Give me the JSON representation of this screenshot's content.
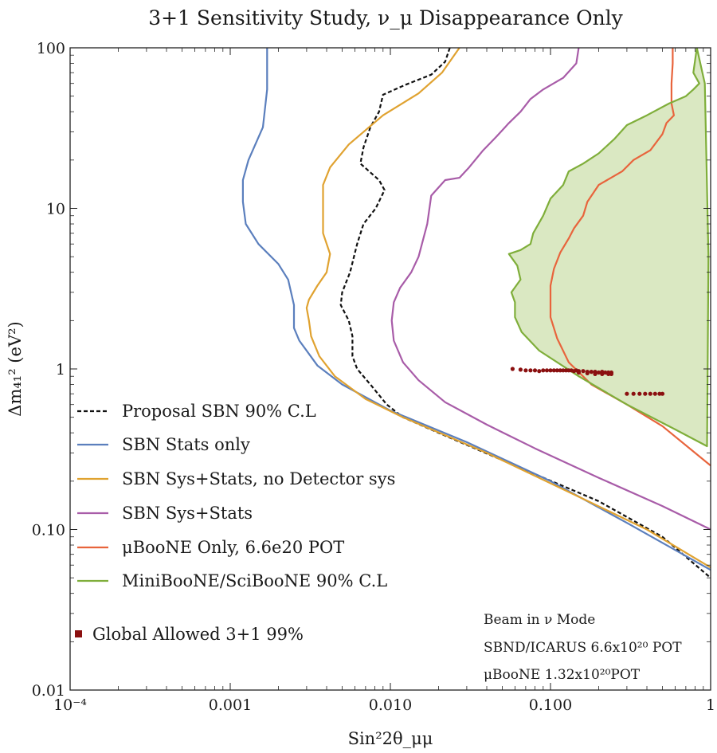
{
  "chart_data": {
    "type": "line",
    "title": "3+1 Sensitivity Study, ν_μ Disappearance Only",
    "xlabel": "Sin²2θ_μμ",
    "ylabel": "Δm₄₁² (eV²)",
    "xscale": "log",
    "yscale": "log",
    "xlim": [
      0.0001,
      1
    ],
    "ylim": [
      0.01,
      100
    ],
    "x_ticks": [
      {
        "v": 0.0001,
        "label": "10⁻⁴"
      },
      {
        "v": 0.001,
        "label": "0.001"
      },
      {
        "v": 0.01,
        "label": "0.010"
      },
      {
        "v": 0.1,
        "label": "0.100"
      },
      {
        "v": 1,
        "label": "1"
      }
    ],
    "y_ticks": [
      {
        "v": 0.01,
        "label": "0.01"
      },
      {
        "v": 0.1,
        "label": "0.10"
      },
      {
        "v": 1,
        "label": "1"
      },
      {
        "v": 10,
        "label": "10"
      },
      {
        "v": 100,
        "label": "100"
      }
    ],
    "grid": false,
    "legend_position": "bottom-left",
    "series": [
      {
        "name": "Proposal SBN 90% C.L",
        "color": "#111111",
        "dash": true,
        "points": [
          [
            0.0235,
            100
          ],
          [
            0.022,
            82
          ],
          [
            0.018,
            68
          ],
          [
            0.0125,
            59
          ],
          [
            0.009,
            51
          ],
          [
            0.0085,
            40
          ],
          [
            0.0075,
            32
          ],
          [
            0.0068,
            24
          ],
          [
            0.0065,
            19
          ],
          [
            0.0085,
            15
          ],
          [
            0.0092,
            13
          ],
          [
            0.0081,
            10
          ],
          [
            0.0068,
            8
          ],
          [
            0.0062,
            6
          ],
          [
            0.0056,
            4
          ],
          [
            0.005,
            3
          ],
          [
            0.0049,
            2.5
          ],
          [
            0.0055,
            2
          ],
          [
            0.0058,
            1.6
          ],
          [
            0.0058,
            1.2
          ],
          [
            0.0062,
            1
          ],
          [
            0.0075,
            0.8
          ],
          [
            0.0095,
            0.6
          ],
          [
            0.012,
            0.5
          ],
          [
            0.02,
            0.4
          ],
          [
            0.06,
            0.25
          ],
          [
            0.2,
            0.15
          ],
          [
            0.5,
            0.09
          ],
          [
            1,
            0.05
          ]
        ]
      },
      {
        "name": "SBN Stats only",
        "color": "#5b7fbd",
        "dash": false,
        "points": [
          [
            0.0017,
            100
          ],
          [
            0.0017,
            55
          ],
          [
            0.0016,
            32
          ],
          [
            0.0013,
            20
          ],
          [
            0.0012,
            15
          ],
          [
            0.0012,
            11
          ],
          [
            0.00125,
            8
          ],
          [
            0.0015,
            6
          ],
          [
            0.002,
            4.5
          ],
          [
            0.0023,
            3.6
          ],
          [
            0.0025,
            2.5
          ],
          [
            0.0025,
            1.8
          ],
          [
            0.0027,
            1.5
          ],
          [
            0.0035,
            1.05
          ],
          [
            0.005,
            0.8
          ],
          [
            0.01,
            0.55
          ],
          [
            0.03,
            0.35
          ],
          [
            0.1,
            0.2
          ],
          [
            0.3,
            0.11
          ],
          [
            1,
            0.056
          ]
        ]
      },
      {
        "name": "SBN Sys+Stats, no Detector sys",
        "color": "#e0a230",
        "dash": false,
        "points": [
          [
            0.027,
            100
          ],
          [
            0.021,
            70
          ],
          [
            0.015,
            52
          ],
          [
            0.009,
            38
          ],
          [
            0.0055,
            25
          ],
          [
            0.0042,
            18
          ],
          [
            0.0038,
            14
          ],
          [
            0.0038,
            10
          ],
          [
            0.0038,
            7
          ],
          [
            0.0042,
            5.2
          ],
          [
            0.004,
            4
          ],
          [
            0.0035,
            3.3
          ],
          [
            0.0031,
            2.7
          ],
          [
            0.003,
            2.4
          ],
          [
            0.0031,
            2.0
          ],
          [
            0.0032,
            1.6
          ],
          [
            0.0036,
            1.2
          ],
          [
            0.0045,
            0.9
          ],
          [
            0.007,
            0.65
          ],
          [
            0.012,
            0.5
          ],
          [
            0.04,
            0.3
          ],
          [
            0.15,
            0.16
          ],
          [
            0.4,
            0.1
          ],
          [
            1,
            0.058
          ]
        ]
      },
      {
        "name": "SBN Sys+Stats",
        "color": "#a85ca8",
        "dash": false,
        "points": [
          [
            0.15,
            100
          ],
          [
            0.145,
            80
          ],
          [
            0.12,
            65
          ],
          [
            0.09,
            55
          ],
          [
            0.075,
            48
          ],
          [
            0.065,
            40
          ],
          [
            0.055,
            34
          ],
          [
            0.046,
            28
          ],
          [
            0.038,
            23
          ],
          [
            0.031,
            18
          ],
          [
            0.027,
            15.5
          ],
          [
            0.022,
            15
          ],
          [
            0.018,
            12
          ],
          [
            0.017,
            8
          ],
          [
            0.015,
            5
          ],
          [
            0.0135,
            4
          ],
          [
            0.0115,
            3.2
          ],
          [
            0.0105,
            2.6
          ],
          [
            0.0102,
            2
          ],
          [
            0.0105,
            1.5
          ],
          [
            0.012,
            1.1
          ],
          [
            0.015,
            0.85
          ],
          [
            0.022,
            0.62
          ],
          [
            0.04,
            0.45
          ],
          [
            0.08,
            0.32
          ],
          [
            0.2,
            0.21
          ],
          [
            0.5,
            0.14
          ],
          [
            1,
            0.1
          ]
        ]
      },
      {
        "name": "μBooNE Only, 6.6e20 POT",
        "color": "#e8643c",
        "dash": false,
        "points": [
          [
            0.58,
            100
          ],
          [
            0.58,
            80
          ],
          [
            0.57,
            60
          ],
          [
            0.57,
            45
          ],
          [
            0.59,
            38
          ],
          [
            0.53,
            34
          ],
          [
            0.5,
            29
          ],
          [
            0.42,
            23
          ],
          [
            0.33,
            20
          ],
          [
            0.28,
            17
          ],
          [
            0.2,
            14
          ],
          [
            0.17,
            11
          ],
          [
            0.16,
            9
          ],
          [
            0.14,
            7.5
          ],
          [
            0.13,
            6.5
          ],
          [
            0.115,
            5.3
          ],
          [
            0.105,
            4.2
          ],
          [
            0.1,
            3.3
          ],
          [
            0.1,
            2.6
          ],
          [
            0.1,
            2.1
          ],
          [
            0.11,
            1.55
          ],
          [
            0.13,
            1.1
          ],
          [
            0.18,
            0.8
          ],
          [
            0.3,
            0.6
          ],
          [
            0.5,
            0.44
          ],
          [
            1,
            0.25
          ]
        ]
      },
      {
        "name": "MiniBooNE/SciBooNE 90% C.L",
        "color": "#7fae3a",
        "dash": false,
        "fill": "rgba(150,190,80,0.35)",
        "points": [
          [
            0.82,
            100
          ],
          [
            0.78,
            70
          ],
          [
            0.85,
            60
          ],
          [
            0.78,
            55
          ],
          [
            0.7,
            50
          ],
          [
            0.55,
            45
          ],
          [
            0.4,
            38
          ],
          [
            0.3,
            33
          ],
          [
            0.25,
            27
          ],
          [
            0.2,
            22
          ],
          [
            0.16,
            19
          ],
          [
            0.13,
            17
          ],
          [
            0.12,
            14
          ],
          [
            0.1,
            11.5
          ],
          [
            0.09,
            9
          ],
          [
            0.078,
            7
          ],
          [
            0.075,
            6
          ],
          [
            0.065,
            5.5
          ],
          [
            0.055,
            5.2
          ],
          [
            0.062,
            4.4
          ],
          [
            0.065,
            3.6
          ],
          [
            0.057,
            3
          ],
          [
            0.06,
            2.6
          ],
          [
            0.06,
            2.1
          ],
          [
            0.066,
            1.7
          ],
          [
            0.085,
            1.3
          ],
          [
            0.15,
            0.9
          ],
          [
            0.3,
            0.6
          ],
          [
            0.6,
            0.42
          ],
          [
            0.95,
            0.33
          ],
          [
            0.97,
            5
          ],
          [
            0.92,
            60
          ],
          [
            0.82,
            100
          ]
        ]
      }
    ],
    "global_allowed": {
      "name": "Global Allowed 3+1 99%",
      "color": "#8b1010",
      "points": [
        [
          0.058,
          1.0
        ],
        [
          0.065,
          0.99
        ],
        [
          0.07,
          0.98
        ],
        [
          0.075,
          0.98
        ],
        [
          0.08,
          0.98
        ],
        [
          0.085,
          0.97
        ],
        [
          0.09,
          0.98
        ],
        [
          0.095,
          0.98
        ],
        [
          0.1,
          0.98
        ],
        [
          0.105,
          0.98
        ],
        [
          0.11,
          0.98
        ],
        [
          0.115,
          0.98
        ],
        [
          0.12,
          0.98
        ],
        [
          0.125,
          0.98
        ],
        [
          0.13,
          0.98
        ],
        [
          0.135,
          0.98
        ],
        [
          0.14,
          0.97
        ],
        [
          0.145,
          0.98
        ],
        [
          0.15,
          0.97
        ],
        [
          0.16,
          0.97
        ],
        [
          0.17,
          0.96
        ],
        [
          0.18,
          0.96
        ],
        [
          0.19,
          0.96
        ],
        [
          0.2,
          0.95
        ],
        [
          0.21,
          0.96
        ],
        [
          0.22,
          0.95
        ],
        [
          0.23,
          0.95
        ],
        [
          0.24,
          0.95
        ],
        [
          0.15,
          0.95
        ],
        [
          0.17,
          0.94
        ],
        [
          0.19,
          0.93
        ],
        [
          0.21,
          0.93
        ],
        [
          0.23,
          0.93
        ],
        [
          0.24,
          0.93
        ],
        [
          0.3,
          0.7
        ],
        [
          0.33,
          0.7
        ],
        [
          0.36,
          0.7
        ],
        [
          0.39,
          0.7
        ],
        [
          0.42,
          0.7
        ],
        [
          0.45,
          0.7
        ],
        [
          0.48,
          0.7
        ],
        [
          0.5,
          0.7
        ]
      ]
    },
    "annotation": {
      "line1": "Beam in ν Mode",
      "line2": "SBND/ICARUS 6.6x10²⁰ POT",
      "line3": "μBooNE 1.32x10²⁰POT"
    }
  }
}
